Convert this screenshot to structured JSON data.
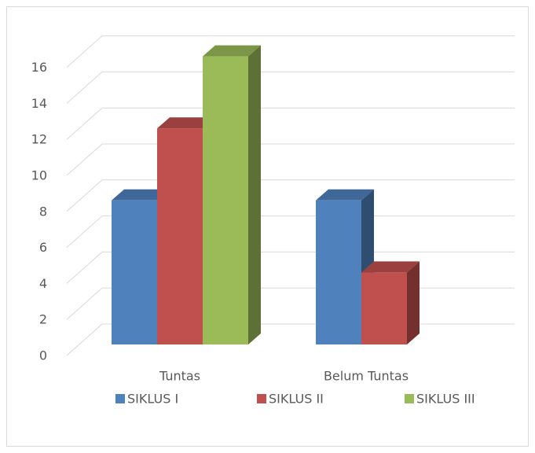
{
  "chart_data": {
    "type": "bar3d",
    "categories": [
      "Tuntas",
      "Belum Tuntas"
    ],
    "series": [
      {
        "name": "SIKLUS I",
        "color": "#4f81bd",
        "values": [
          8,
          8
        ]
      },
      {
        "name": "SIKLUS II",
        "color": "#c0504d",
        "values": [
          12,
          4
        ]
      },
      {
        "name": "SIKLUS III",
        "color": "#9bbb59",
        "values": [
          16,
          null
        ]
      }
    ],
    "ylim": [
      0,
      16
    ],
    "yticks": [
      0,
      2,
      4,
      6,
      8,
      10,
      12,
      14,
      16
    ],
    "grid": true,
    "legend": "bottom"
  }
}
